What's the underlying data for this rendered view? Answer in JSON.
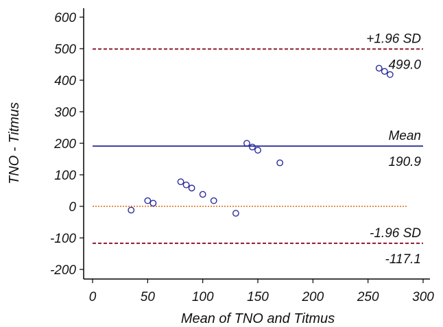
{
  "chart_data": {
    "type": "scatter",
    "title": "",
    "xlabel": "Mean of TNO and Titmus",
    "ylabel": "TNO - Titmus",
    "xlim": [
      0,
      300
    ],
    "ylim": [
      -200,
      600
    ],
    "x_ticks": [
      0,
      50,
      100,
      150,
      200,
      250,
      300
    ],
    "y_ticks": [
      -200,
      -100,
      0,
      100,
      200,
      300,
      400,
      500,
      600
    ],
    "grid": false,
    "marker_color": "#2a2a9c",
    "points": [
      {
        "x": 35,
        "y": -12
      },
      {
        "x": 50,
        "y": 18
      },
      {
        "x": 55,
        "y": 10
      },
      {
        "x": 80,
        "y": 78
      },
      {
        "x": 85,
        "y": 68
      },
      {
        "x": 90,
        "y": 58
      },
      {
        "x": 100,
        "y": 38
      },
      {
        "x": 110,
        "y": 18
      },
      {
        "x": 130,
        "y": -22
      },
      {
        "x": 140,
        "y": 200
      },
      {
        "x": 145,
        "y": 188
      },
      {
        "x": 150,
        "y": 178
      },
      {
        "x": 170,
        "y": 138
      },
      {
        "x": 260,
        "y": 438
      },
      {
        "x": 265,
        "y": 428
      },
      {
        "x": 270,
        "y": 418
      }
    ],
    "reference_lines": [
      {
        "id": "upper",
        "y": 499.0,
        "label": "+1.96 SD",
        "value_label": "499.0",
        "style": "dashed",
        "color": "#8b1a2b"
      },
      {
        "id": "mean",
        "y": 190.9,
        "label": "Mean",
        "value_label": "190.9",
        "style": "solid",
        "color": "#3a3aa0"
      },
      {
        "id": "zero",
        "y": 0,
        "label": "",
        "value_label": "",
        "style": "dotted",
        "color": "#e07b2a",
        "x_end": 285
      },
      {
        "id": "lower",
        "y": -117.1,
        "label": "-1.96 SD",
        "value_label": "-117.1",
        "style": "dashed",
        "color": "#8b1a2b"
      }
    ]
  }
}
